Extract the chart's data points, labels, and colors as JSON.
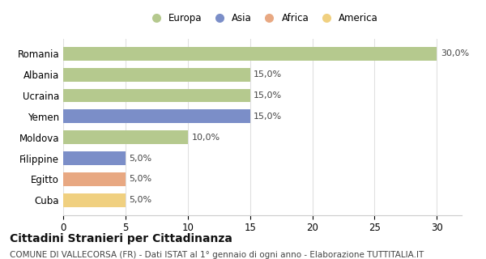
{
  "categories": [
    "Romania",
    "Albania",
    "Ucraina",
    "Yemen",
    "Moldova",
    "Filippine",
    "Egitto",
    "Cuba"
  ],
  "values": [
    30.0,
    15.0,
    15.0,
    15.0,
    10.0,
    5.0,
    5.0,
    5.0
  ],
  "colors": [
    "#b5c98e",
    "#b5c98e",
    "#b5c98e",
    "#7b8ec8",
    "#b5c98e",
    "#7b8ec8",
    "#e8a882",
    "#f0d080"
  ],
  "legend_labels": [
    "Europa",
    "Asia",
    "Africa",
    "America"
  ],
  "legend_colors": [
    "#b5c98e",
    "#7b8ec8",
    "#e8a882",
    "#f0d080"
  ],
  "title": "Cittadini Stranieri per Cittadinanza",
  "subtitle": "COMUNE DI VALLECORSA (FR) - Dati ISTAT al 1° gennaio di ogni anno - Elaborazione TUTTITALIA.IT",
  "xlim": [
    0,
    32
  ],
  "xticks": [
    0,
    5,
    10,
    15,
    20,
    25,
    30
  ],
  "background_color": "#ffffff",
  "grid_color": "#e0e0e0",
  "title_fontsize": 10,
  "subtitle_fontsize": 7.5,
  "label_fontsize": 8,
  "bar_height": 0.65,
  "ytick_fontsize": 8.5,
  "xtick_fontsize": 8.5
}
